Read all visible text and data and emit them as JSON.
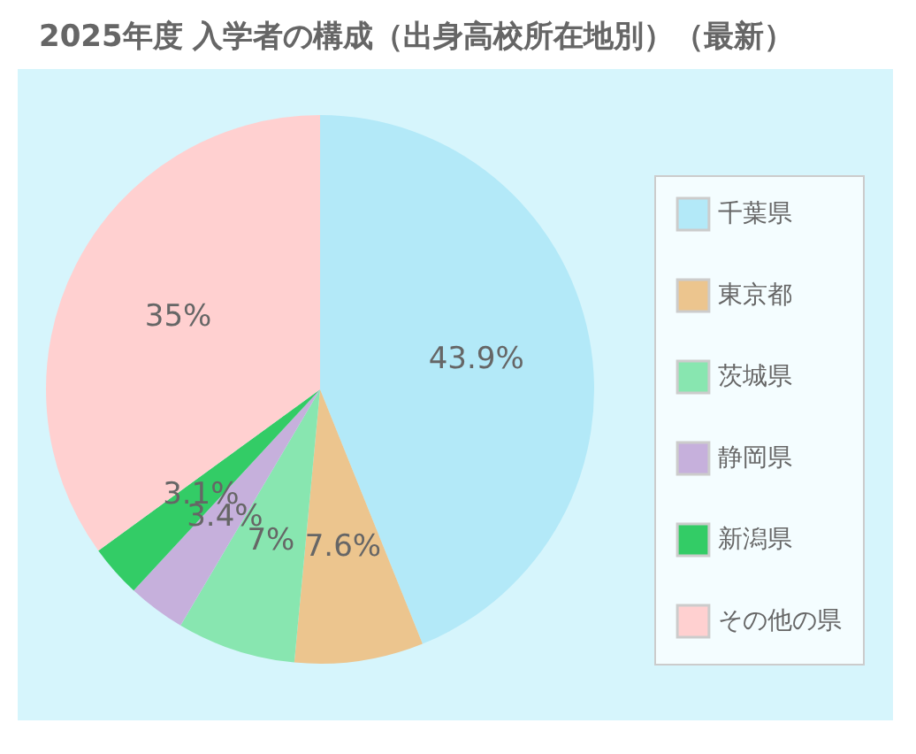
{
  "chart_data": {
    "type": "pie",
    "title": "2025年度 入学者の構成（出身高校所在地別）（最新）",
    "categories": [
      "千葉県",
      "東京都",
      "茨城県",
      "静岡県",
      "新潟県",
      "その他の県"
    ],
    "values": [
      43.9,
      7.6,
      7,
      3.4,
      3.1,
      35
    ],
    "colors": [
      "#b3e9f8",
      "#ecc58e",
      "#88e6b0",
      "#c6b0dc",
      "#33cc66",
      "#ffd0d0"
    ],
    "value_labels": [
      "43.9%",
      "7.6%",
      "7%",
      "3.4%",
      "3.1%",
      "35%"
    ],
    "legend": "right"
  }
}
